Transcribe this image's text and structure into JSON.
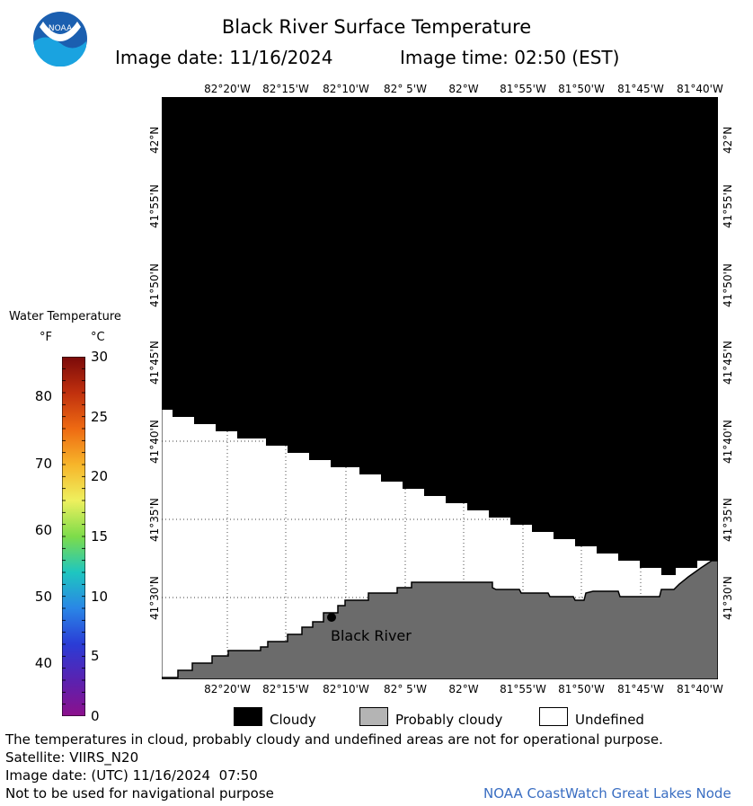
{
  "header": {
    "title": "Black River Surface Temperature",
    "image_date": "Image date: 11/16/2024",
    "image_time": "Image time: 02:50 (EST)"
  },
  "logo": {
    "text": "NOAA"
  },
  "map": {
    "lon_ticks": [
      "82°20'W",
      "82°15'W",
      "82°10'W",
      "82° 5'W",
      "82°W",
      "81°55'W",
      "81°50'W",
      "81°45'W",
      "81°40'W"
    ],
    "lat_ticks": [
      "42°N",
      "41°55'N",
      "41°50'N",
      "41°45'N",
      "41°40'N",
      "41°35'N",
      "41°30'N"
    ],
    "station": {
      "label": "Black River"
    },
    "colors": {
      "cloudy": "#000000",
      "probably_cloudy": "#b4b4b4",
      "land": "#6b6b6b",
      "undefined": "#ffffff"
    }
  },
  "legend": {
    "title": "Water Temperature",
    "unit_f": "°F",
    "unit_c": "°C",
    "f_ticks": [
      "80",
      "70",
      "60",
      "50",
      "40"
    ],
    "c_ticks": [
      "30",
      "25",
      "20",
      "15",
      "10",
      "5",
      "0"
    ],
    "colorbar_colors": [
      "#7a0a0a",
      "#c0300e",
      "#ee6a12",
      "#f7b52a",
      "#eef05e",
      "#7ddc4a",
      "#1ec6c0",
      "#2a86e6",
      "#2a3cd6",
      "#5a22b0",
      "#8c108c"
    ]
  },
  "key": {
    "items": [
      {
        "label": "Cloudy",
        "color": "#000000"
      },
      {
        "label": "Probably cloudy",
        "color": "#b4b4b4"
      },
      {
        "label": "Undefined",
        "color": "#ffffff"
      }
    ]
  },
  "footer": {
    "disclaimer": "The temperatures in cloud, probably cloudy and undefined areas are not for operational purpose.",
    "satellite": "Satellite: VIIRS_N20",
    "utc_date": "Image date: (UTC) 11/16/2024  07:50",
    "nav_warning": "Not to be used for navigational purpose",
    "credit": "NOAA CoastWatch Great Lakes Node"
  }
}
